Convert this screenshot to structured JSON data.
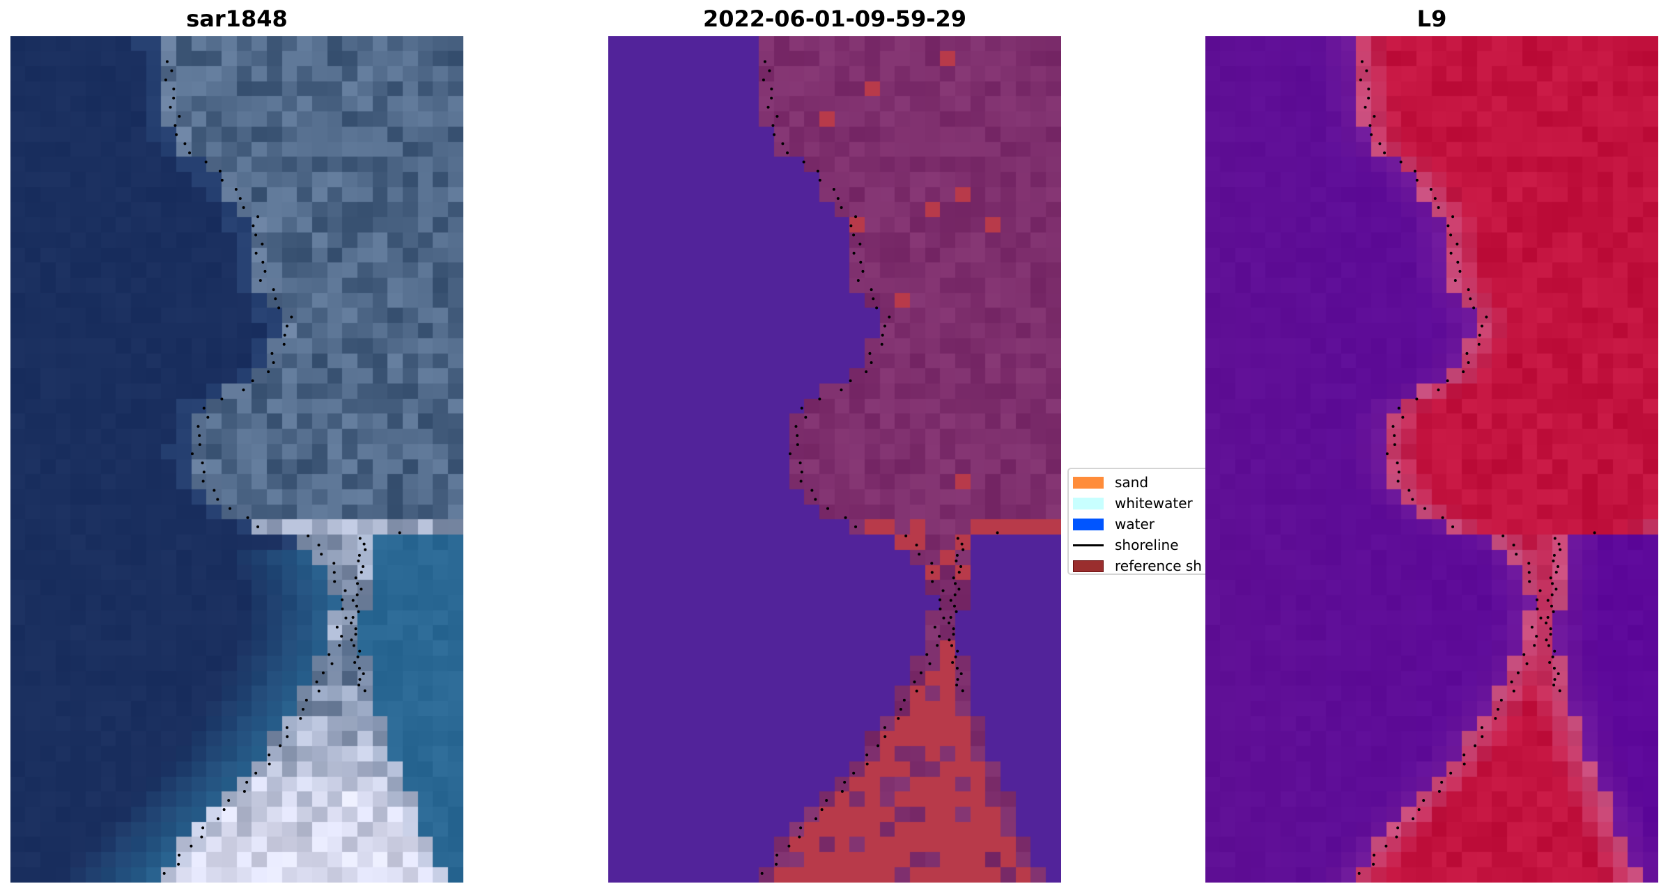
{
  "panels": [
    {
      "title": "sar1848",
      "style": "rgb"
    },
    {
      "title": "2022-06-01-09-59-29",
      "style": "classified"
    },
    {
      "title": "L9",
      "style": "index"
    }
  ],
  "legend": {
    "items": [
      {
        "label": "sand",
        "color": "#ff8c3a",
        "kind": "patch"
      },
      {
        "label": "whitewater",
        "color": "#c8ffff",
        "kind": "patch"
      },
      {
        "label": "water",
        "color": "#0055ff",
        "kind": "patch"
      },
      {
        "label": "shoreline",
        "color": "#000000",
        "kind": "line"
      },
      {
        "label": "reference sh",
        "color": "#9a2e2e",
        "kind": "patch"
      }
    ]
  },
  "colors": {
    "rgb_water": "#1a2f5f",
    "rgb_land": "#4d6686",
    "rgb_channel": "#2a6894",
    "rgb_spit": "#d6d8ec",
    "classified_water": "#52239a",
    "classified_land": "#732463",
    "classified_reference": "#b83a4a",
    "index_water": "#5f0f95",
    "index_land": "#c2123e",
    "index_edge": "#c85080",
    "shoreline_dots": "#000000"
  }
}
